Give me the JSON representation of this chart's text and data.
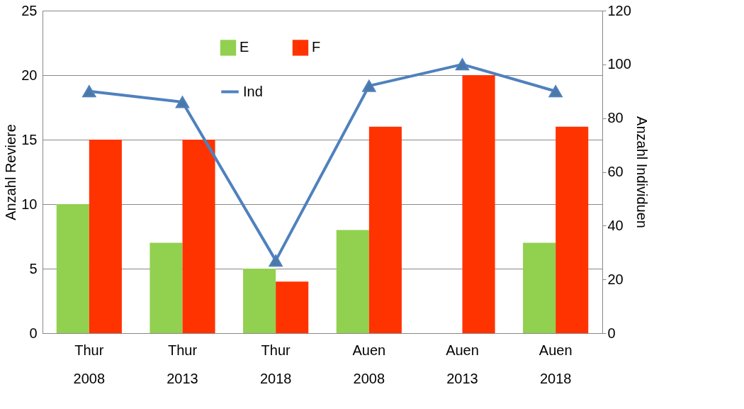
{
  "chart_data": {
    "type": "bar",
    "ylabel": "Anzahl Reviere",
    "y2label": "Anzahl Individuen",
    "categories": [
      "Thur\n2008",
      "Thur\n2013",
      "Thur\n2018",
      "Auen\n2008",
      "Auen\n2013",
      "Auen\n2018"
    ],
    "series": [
      {
        "name": "E",
        "color": "#92d050",
        "values": [
          10,
          7,
          5,
          8,
          null,
          7
        ]
      },
      {
        "name": "F",
        "color": "#ff3300",
        "values": [
          15,
          15,
          4,
          16,
          20,
          16
        ]
      },
      {
        "name": "Ind",
        "type": "line",
        "axis": "y2",
        "color": "#4f81bd",
        "values": [
          90,
          86,
          27,
          92,
          100,
          90
        ]
      }
    ],
    "ylim": [
      0,
      25
    ],
    "yticks": [
      0,
      5,
      10,
      15,
      20,
      25
    ],
    "y2lim": [
      0,
      120
    ],
    "y2ticks": [
      0,
      20,
      40,
      60,
      80,
      100,
      120
    ],
    "grid": "y",
    "legend": "top",
    "marker": "triangle"
  }
}
